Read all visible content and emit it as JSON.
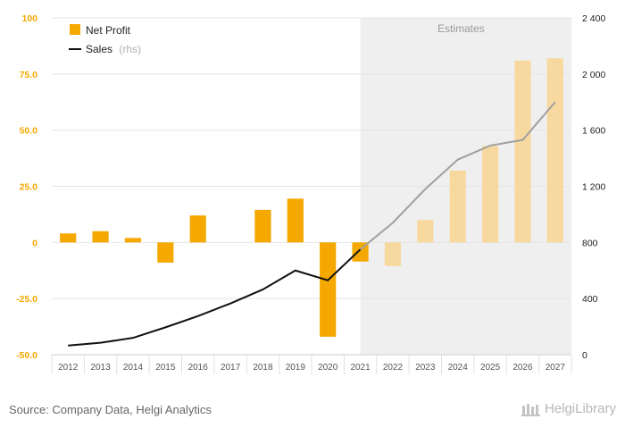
{
  "colors": {
    "bar": "#f5a800",
    "bar_estimate": "#f7d9a0",
    "line": "#111111",
    "line_estimate": "#a0a0a0",
    "left_axis_text": "#f5a800",
    "right_axis_text": "#222222",
    "estimate_band": "#efefef"
  },
  "legend": {
    "net_profit": "Net Profit",
    "sales": "Sales",
    "sales_suffix": "(rhs)"
  },
  "estimates_label": "Estimates",
  "source": "Source: Company Data, Helgi Analytics",
  "logo_text": "HelgiLibrary",
  "chart_data": {
    "type": "bar",
    "categories": [
      "2012",
      "2013",
      "2014",
      "2015",
      "2016",
      "2017",
      "2018",
      "2019",
      "2020",
      "2021",
      "2022",
      "2023",
      "2024",
      "2025",
      "2026",
      "2027"
    ],
    "estimates_from": "2022",
    "series": [
      {
        "name": "Net Profit",
        "axis": "left",
        "type": "bar",
        "values": [
          4,
          5,
          2,
          -9,
          12,
          0,
          14.5,
          19.5,
          -42,
          -8.5,
          -10.5,
          10,
          32,
          43,
          81,
          82
        ]
      },
      {
        "name": "Sales (rhs)",
        "axis": "right",
        "type": "line",
        "values": [
          65,
          85,
          120,
          195,
          275,
          365,
          465,
          600,
          530,
          750,
          940,
          1180,
          1390,
          1490,
          1530,
          1800
        ]
      }
    ],
    "left_axis": {
      "ylim": [
        -50,
        100
      ],
      "ticks": [
        "-50.0",
        "-25.0",
        "0",
        "25.0",
        "50.0",
        "75.0",
        "100"
      ]
    },
    "right_axis": {
      "ylim": [
        0,
        2400
      ],
      "ticks": [
        "0",
        "400",
        "800",
        "1 200",
        "1 600",
        "2 000",
        "2 400"
      ]
    },
    "legend_position": "top-left",
    "grid": true
  }
}
